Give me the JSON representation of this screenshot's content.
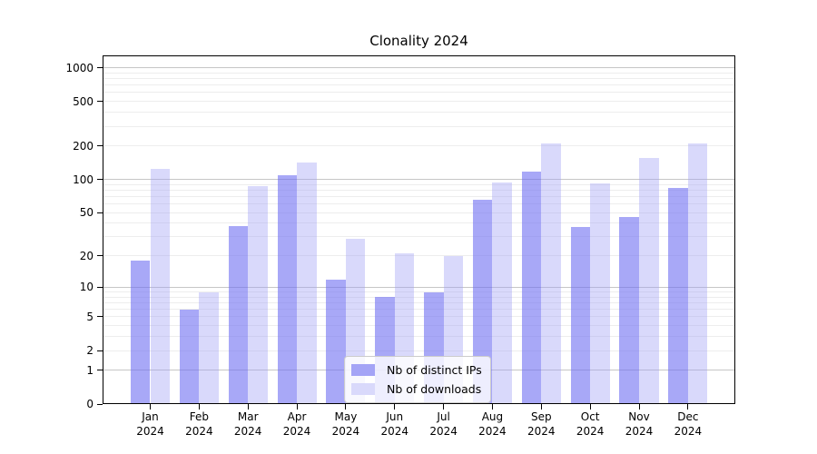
{
  "title": "Clonality 2024",
  "chart_data": {
    "type": "bar",
    "title": "Clonality 2024",
    "scale": "log1p",
    "grid": "on",
    "legend_position": "inside lower center",
    "xlabel": "",
    "ylabel": "",
    "categories": [
      "Jan\n2024",
      "Feb\n2024",
      "Mar\n2024",
      "Apr\n2024",
      "May\n2024",
      "Jun\n2024",
      "Jul\n2024",
      "Aug\n2024",
      "Sep\n2024",
      "Oct\n2024",
      "Nov\n2024",
      "Dec\n2024"
    ],
    "series": [
      {
        "name": "Nb of distinct IPs",
        "fill": "rgba(110,110,242,0.60)",
        "legend_color": "#a4a4f6",
        "values": [
          18,
          6,
          38,
          110,
          12,
          8,
          9,
          65,
          117,
          37,
          46,
          84
        ]
      },
      {
        "name": "Nb of downloads",
        "fill": "rgba(160,160,245,0.40)",
        "legend_color": "#d9d9fb",
        "values": [
          124,
          9,
          87,
          143,
          29,
          21,
          20,
          93,
          209,
          92,
          155,
          209
        ]
      }
    ],
    "yticks": [
      0,
      1,
      2,
      5,
      10,
      20,
      50,
      100,
      200,
      500,
      1000
    ],
    "ygrid_major": [
      1,
      10,
      100,
      1000
    ],
    "ygrid_minor": [
      2,
      3,
      4,
      5,
      6,
      7,
      8,
      9,
      20,
      30,
      40,
      50,
      60,
      70,
      80,
      90,
      200,
      300,
      400,
      500,
      600,
      700,
      800,
      900
    ],
    "ylim": [
      0,
      1290
    ]
  },
  "legend": {
    "items": [
      {
        "label": "Nb of distinct IPs",
        "color": "#a4a4f6"
      },
      {
        "label": "Nb of downloads",
        "color": "#d9d9fb"
      }
    ]
  }
}
